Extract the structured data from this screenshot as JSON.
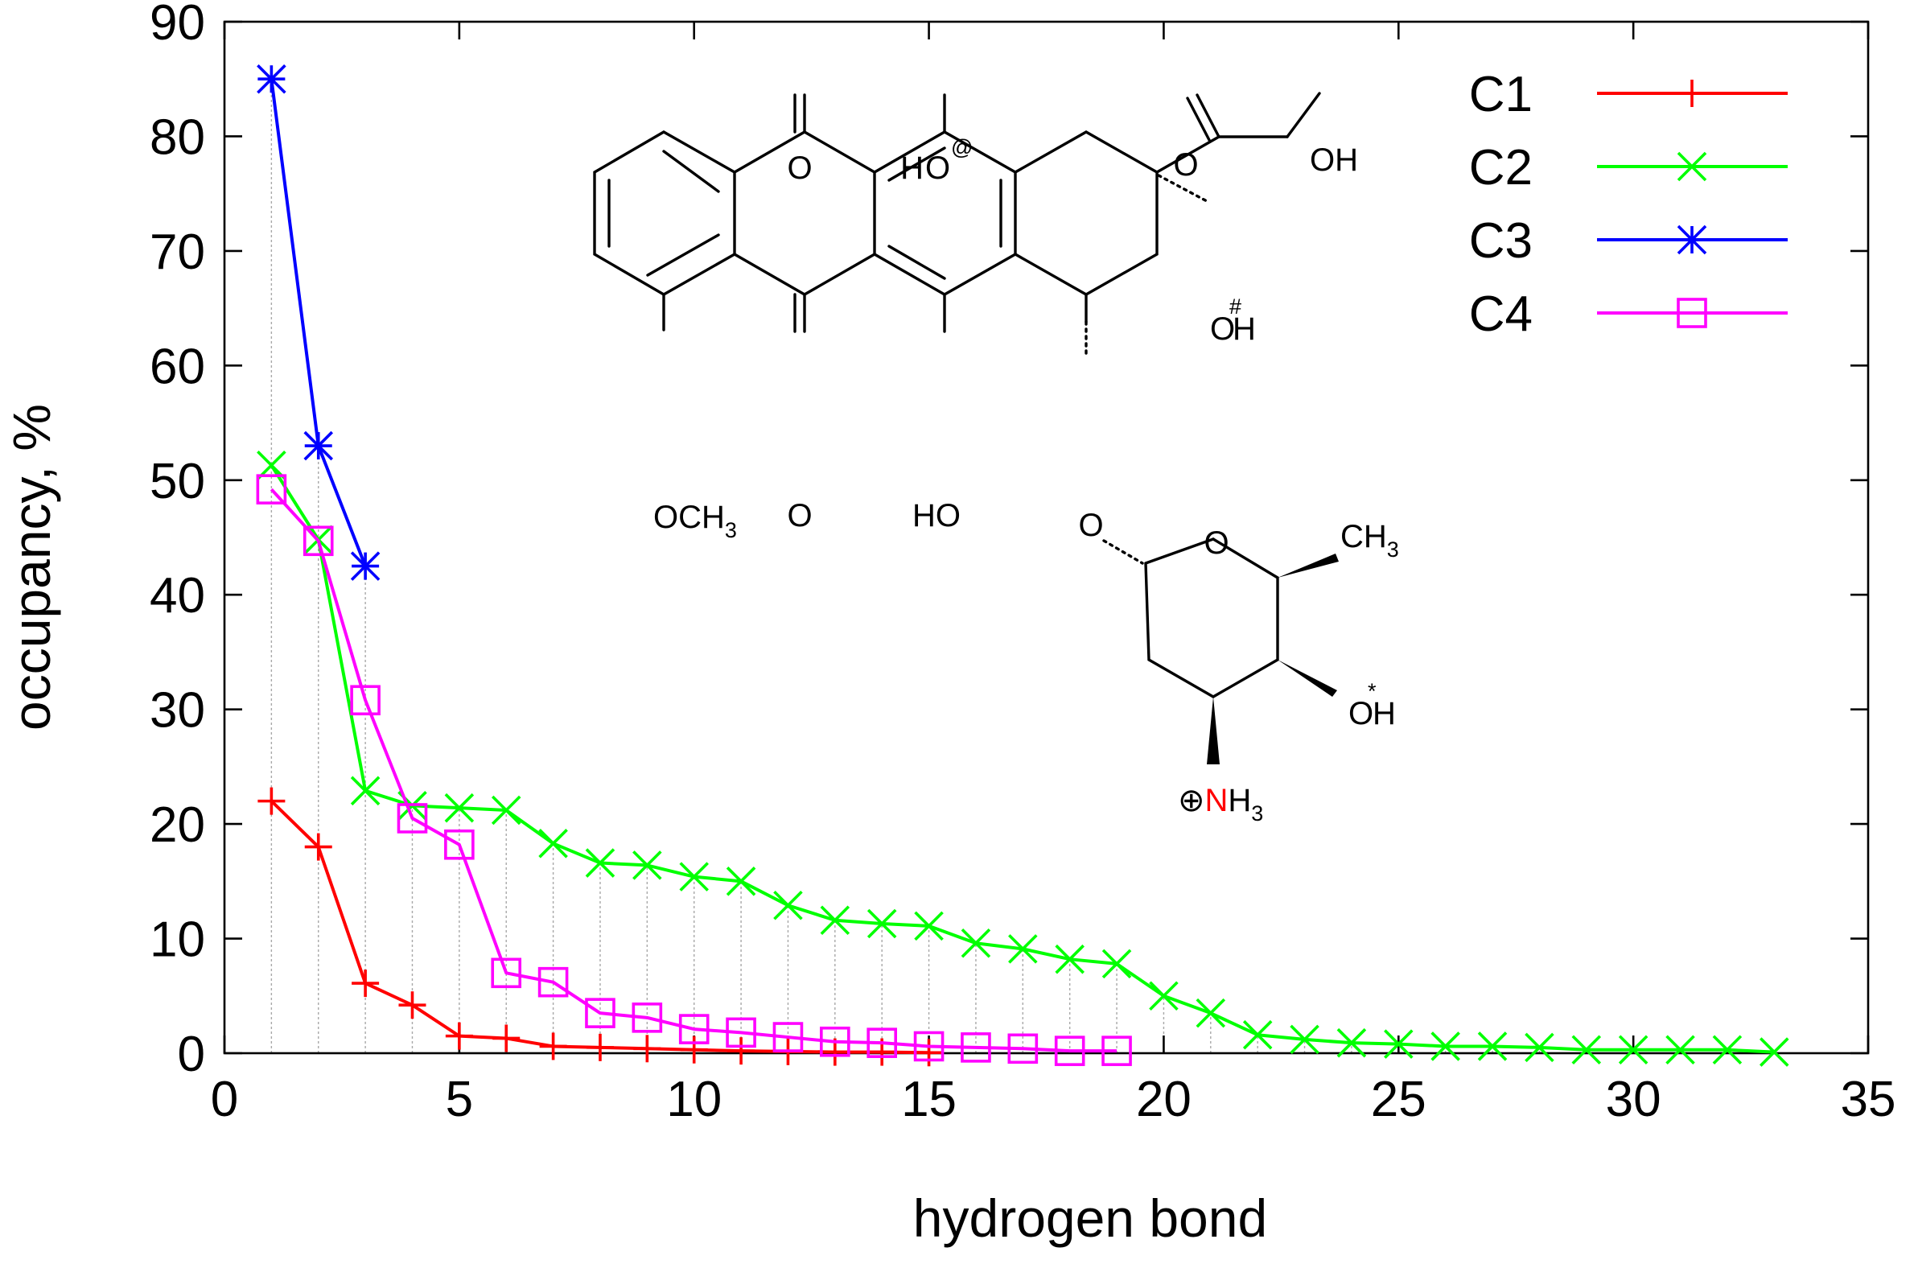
{
  "chart_data": {
    "type": "line",
    "title": "",
    "xlabel": "hydrogen bond",
    "ylabel": "occupancy, %",
    "xlim": [
      0,
      35
    ],
    "ylim": [
      0,
      90
    ],
    "xticks": [
      0,
      5,
      10,
      15,
      20,
      25,
      30,
      35
    ],
    "yticks": [
      0,
      10,
      20,
      30,
      40,
      50,
      60,
      70,
      80,
      90
    ],
    "grid": "vertical impulse lines at each hydrogen bond index",
    "legend_position": "top-right",
    "series": [
      {
        "name": "C1",
        "color": "#ff0000",
        "marker": "plus",
        "x": [
          1,
          2,
          3,
          4,
          5,
          6,
          7,
          8,
          9,
          10,
          11,
          12,
          13,
          14,
          15
        ],
        "y": [
          22,
          18,
          6.1,
          4.2,
          1.5,
          1.3,
          0.6,
          0.5,
          0.4,
          0.3,
          0.2,
          0.15,
          0.1,
          0.1,
          0.05
        ]
      },
      {
        "name": "C2",
        "color": "#00ff00",
        "marker": "cross",
        "x": [
          1,
          2,
          3,
          4,
          5,
          6,
          7,
          8,
          9,
          10,
          11,
          12,
          13,
          14,
          15,
          16,
          17,
          18,
          19,
          20,
          21,
          22,
          23,
          24,
          25,
          26,
          27,
          28,
          29,
          30,
          31,
          32,
          33
        ],
        "y": [
          51.3,
          44.8,
          22.9,
          21.6,
          21.4,
          21.2,
          18.3,
          16.6,
          16.4,
          15.4,
          15.0,
          12.9,
          11.6,
          11.3,
          11.1,
          9.6,
          9.1,
          8.2,
          7.8,
          5.0,
          3.5,
          1.6,
          1.2,
          0.9,
          0.8,
          0.6,
          0.6,
          0.5,
          0.3,
          0.3,
          0.3,
          0.3,
          0.1
        ]
      },
      {
        "name": "C3",
        "color": "#0000ff",
        "marker": "star",
        "x": [
          1,
          2,
          3
        ],
        "y": [
          85,
          53,
          42.5
        ]
      },
      {
        "name": "C4",
        "color": "#ff00ff",
        "marker": "open-square",
        "x": [
          1,
          2,
          3,
          4,
          5,
          6,
          7,
          8,
          9,
          10,
          11,
          12,
          13,
          14,
          15,
          16,
          17,
          18,
          19
        ],
        "y": [
          49.2,
          44.7,
          30.8,
          20.5,
          18.2,
          7.0,
          6.2,
          3.5,
          3.1,
          2.1,
          1.8,
          1.4,
          1.0,
          0.9,
          0.6,
          0.5,
          0.4,
          0.2,
          0.2
        ]
      }
    ]
  },
  "molecule": {
    "labels": {
      "ketone_top": "O",
      "ketone_bottom": "O",
      "ho_top_h": "H",
      "ho_top_o": "O",
      "ho_top_mark": "@",
      "ho_bottom": "HO",
      "och3_main": "OCH",
      "och3_sub": "3",
      "side_ketone": "O",
      "side_oh": "OH",
      "ring_oh_o": "O",
      "ring_oh_mark": "#",
      "ring_oh_h": "H",
      "glycosidic_o": "O",
      "sugar_ring_o": "O",
      "ch3_main": "CH",
      "ch3_sub": "3",
      "sugar_oh_o": "O",
      "sugar_oh_mark": "*",
      "sugar_oh_h": "H",
      "amine_plus": "⊕",
      "amine_n": "N",
      "amine_h": "H",
      "amine_sub": "3"
    },
    "colors": {
      "highlight_oxygen": "#00ee00",
      "highlight_nitrogen": "#ff0000"
    }
  }
}
